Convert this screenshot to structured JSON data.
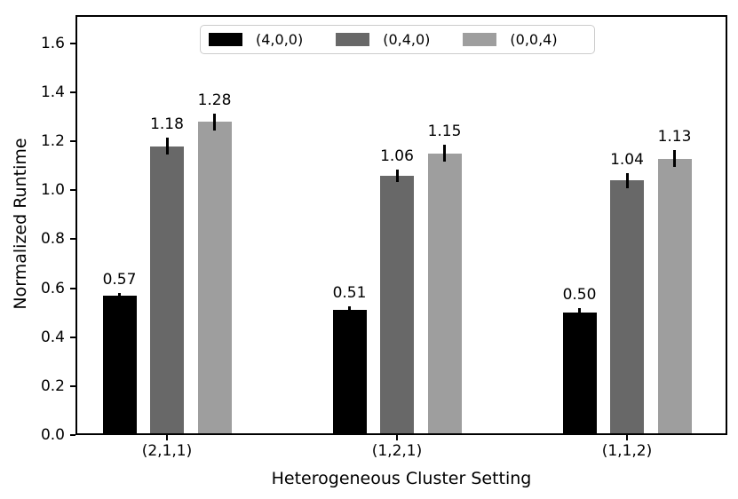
{
  "figure": {
    "background_color": "#ffffff",
    "text_color": "#000000"
  },
  "axes": {
    "xlabel": "Heterogeneous Cluster Setting",
    "ylabel": "Normalized Runtime",
    "xtick_labels": [
      "(2,1,1)",
      "(1,2,1)",
      "(1,1,2)"
    ],
    "ytick_labels": [
      "0.0",
      "0.2",
      "0.4",
      "0.6",
      "0.8",
      "1.0",
      "1.2",
      "1.4",
      "1.6"
    ]
  },
  "legend": {
    "entries": [
      {
        "label": "(4,0,0)",
        "color": "#000000"
      },
      {
        "label": "(0,4,0)",
        "color": "#686868"
      },
      {
        "label": "(0,0,4)",
        "color": "#9e9e9e"
      }
    ],
    "position": "upper center"
  },
  "chart_data": {
    "type": "bar",
    "title": "",
    "xlabel": "Heterogeneous Cluster Setting",
    "ylabel": "Normalized Runtime",
    "categories": [
      "(2,1,1)",
      "(1,2,1)",
      "(1,1,2)"
    ],
    "series": [
      {
        "name": "(4,0,0)",
        "color": "#000000",
        "values": [
          0.57,
          0.51,
          0.5
        ],
        "errors": [
          0.012,
          0.015,
          0.018
        ],
        "labels": [
          "0.57",
          "0.51",
          "0.50"
        ]
      },
      {
        "name": "(0,4,0)",
        "color": "#686868",
        "values": [
          1.18,
          1.06,
          1.04
        ],
        "errors": [
          0.035,
          0.025,
          0.03
        ],
        "labels": [
          "1.18",
          "1.06",
          "1.04"
        ]
      },
      {
        "name": "(0,0,4)",
        "color": "#9e9e9e",
        "values": [
          1.28,
          1.15,
          1.13
        ],
        "errors": [
          0.035,
          0.035,
          0.035
        ],
        "labels": [
          "1.28",
          "1.15",
          "1.13"
        ]
      }
    ],
    "ylim": [
      0.0,
      1.716
    ],
    "yticks": [
      0.0,
      0.2,
      0.4,
      0.6,
      0.8,
      1.0,
      1.2,
      1.4,
      1.6
    ],
    "grid": false,
    "error_bars": true,
    "bar_value_labels": true,
    "legend_position": "upper center"
  }
}
